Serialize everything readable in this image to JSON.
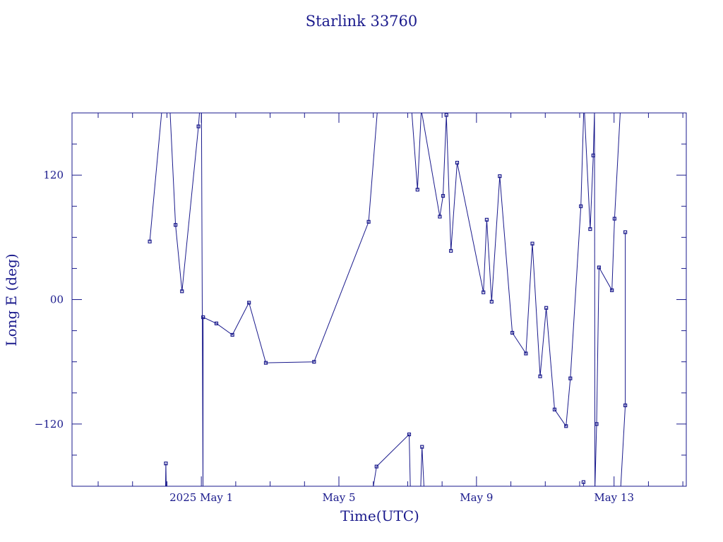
{
  "chart_data": {
    "type": "line",
    "title": "Starlink 33760",
    "xlabel": "Time(UTC)",
    "ylabel": "Long E (deg)",
    "x_range_days": [
      -3.76,
      14.1
    ],
    "ylim": [
      -180,
      180
    ],
    "x_ticks": [
      {
        "day": 0,
        "label": "2025 May  1"
      },
      {
        "day": 4,
        "label": "May  5"
      },
      {
        "day": 8,
        "label": "May  9"
      },
      {
        "day": 12,
        "label": "May 13"
      }
    ],
    "y_ticks": [
      {
        "value": 120,
        "label": "120"
      },
      {
        "value": 0,
        "label": "00"
      },
      {
        "value": -120,
        "label": "−120"
      }
    ],
    "color": "#1a1a8c",
    "series": [
      {
        "values": [
          {
            "x": "2025-04-29 12:00",
            "y": 56
          },
          {
            "x": "2025-04-29 23:10",
            "y": 224
          },
          {
            "x": "2025-04-30 01:00",
            "y": 215
          },
          {
            "x": "2025-04-30 06:00",
            "y": 72
          },
          {
            "x": "2025-04-30 10:30",
            "y": 8
          },
          {
            "x": "2025-04-30 22:00",
            "y": 167
          },
          {
            "x": "2025-05-01 00:00",
            "y": 205
          },
          {
            "x": "2025-05-01 01:10",
            "y": -183
          },
          {
            "x": "2025-05-01 01:15",
            "y": -17
          },
          {
            "x": "2025-05-01 10:30",
            "y": -23
          },
          {
            "x": "2025-05-01 21:40",
            "y": -34
          },
          {
            "x": "2025-05-02 09:15",
            "y": -3
          },
          {
            "x": "2025-05-02 21:00",
            "y": -61
          },
          {
            "x": "2025-05-04 06:40",
            "y": -60
          },
          {
            "x": "2025-05-05 20:45",
            "y": 75
          },
          {
            "x": "2025-05-06 03:00",
            "y": 185
          },
          {
            "x": "2025-05-07 02:40",
            "y": 185
          },
          {
            "x": "2025-05-07 06:50",
            "y": 106
          },
          {
            "x": "2025-05-07 09:30",
            "y": 183
          },
          {
            "x": "2025-05-07 22:25",
            "y": 80
          },
          {
            "x": "2025-05-08 00:40",
            "y": 100
          },
          {
            "x": "2025-05-08 03:00",
            "y": 178
          },
          {
            "x": "2025-05-08 06:10",
            "y": 47
          },
          {
            "x": "2025-05-08 10:30",
            "y": 132
          },
          {
            "x": "2025-05-09 04:50",
            "y": 7
          },
          {
            "x": "2025-05-09 07:10",
            "y": 77
          },
          {
            "x": "2025-05-09 10:35",
            "y": -2
          },
          {
            "x": "2025-05-09 16:15",
            "y": 119
          },
          {
            "x": "2025-05-10 01:00",
            "y": -32
          },
          {
            "x": "2025-05-10 10:30",
            "y": -52
          },
          {
            "x": "2025-05-10 15:00",
            "y": 54
          },
          {
            "x": "2025-05-10 20:25",
            "y": -74
          },
          {
            "x": "2025-05-11 00:40",
            "y": -8
          },
          {
            "x": "2025-05-11 06:30",
            "y": -106
          },
          {
            "x": "2025-05-11 14:30",
            "y": -122
          },
          {
            "x": "2025-05-11 17:30",
            "y": -76
          },
          {
            "x": "2025-05-12 00:50",
            "y": 90
          },
          {
            "x": "2025-05-12 03:00",
            "y": 190
          },
          {
            "x": "2025-05-12 07:20",
            "y": 68
          },
          {
            "x": "2025-05-12 09:30",
            "y": 139
          },
          {
            "x": "2025-05-12 10:20",
            "y": 182
          },
          {
            "x": "2025-05-12 10:40",
            "y": -183
          },
          {
            "x": "2025-05-12 11:50",
            "y": -120
          },
          {
            "x": "2025-05-12 13:30",
            "y": 31
          },
          {
            "x": "2025-05-12 22:30",
            "y": 9
          },
          {
            "x": "2025-05-13 00:20",
            "y": 78
          },
          {
            "x": "2025-05-13 04:30",
            "y": 185
          }
        ]
      },
      {
        "values": [
          {
            "x": "2025-04-29 23:00",
            "y": -185
          },
          {
            "x": "2025-04-29 23:15",
            "y": -158
          },
          {
            "x": "2025-04-29 23:35",
            "y": -185
          }
        ]
      },
      {
        "values": [
          {
            "x": "2025-05-05 23:30",
            "y": -185
          },
          {
            "x": "2025-05-06 02:15",
            "y": -161
          },
          {
            "x": "2025-05-07 01:00",
            "y": -130
          },
          {
            "x": "2025-05-07 01:55",
            "y": -185
          }
        ]
      },
      {
        "values": [
          {
            "x": "2025-05-07 09:00",
            "y": -185
          },
          {
            "x": "2025-05-07 10:00",
            "y": -142
          },
          {
            "x": "2025-05-07 11:30",
            "y": -185
          }
        ]
      },
      {
        "values": [
          {
            "x": "2025-05-12 02:40",
            "y": -176
          },
          {
            "x": "2025-05-12 02:55",
            "y": -185
          }
        ]
      },
      {
        "values": [
          {
            "x": "2025-05-13 04:30",
            "y": -185
          },
          {
            "x": "2025-05-13 07:50",
            "y": -102
          },
          {
            "x": "2025-05-13 07:50",
            "y": 65
          }
        ]
      }
    ]
  }
}
